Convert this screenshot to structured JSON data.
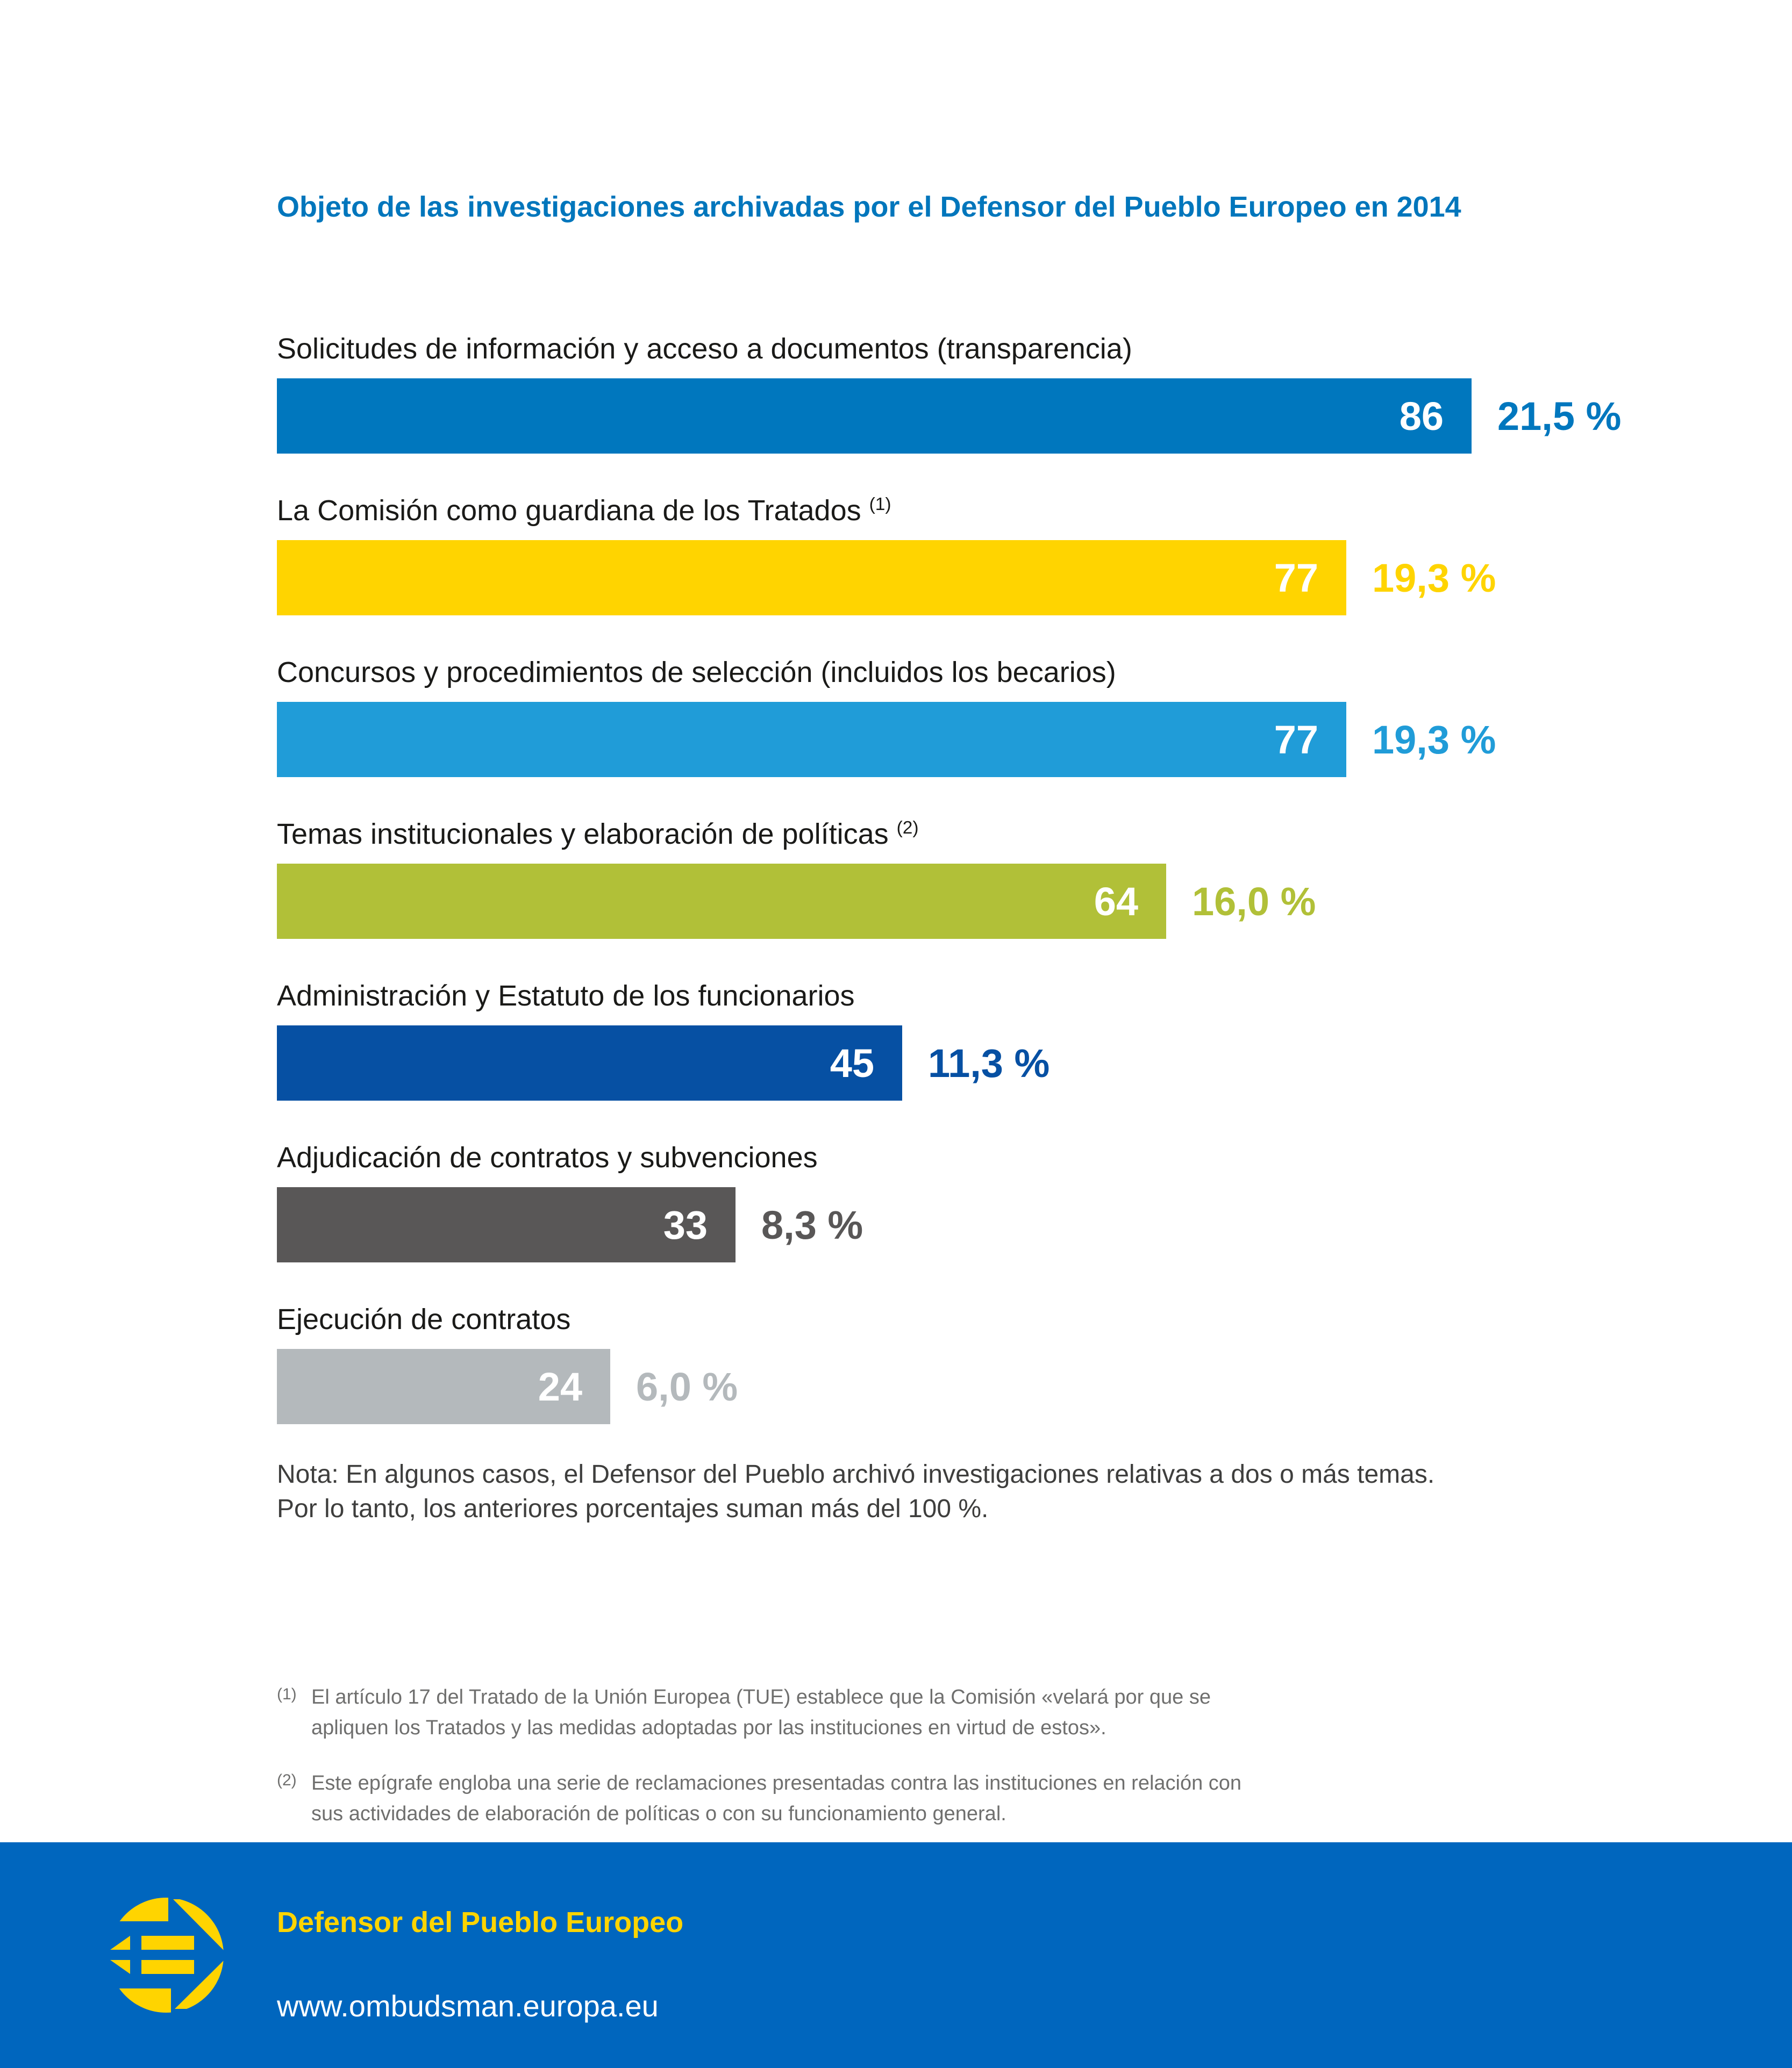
{
  "page_title": "Objeto de las investigaciones archivadas por el Defensor del Pueblo Europeo en 2014",
  "chart_data": {
    "type": "bar",
    "orientation": "horizontal",
    "title": "Objeto de las investigaciones archivadas por el Defensor del Pueblo Europeo en 2014",
    "title_color": "#0076bc",
    "max_value": 86,
    "grid": "off",
    "legend": "none",
    "categories": [
      "Solicitudes de información y acceso a documentos (transparencia)",
      "La Comisión como guardiana de los Tratados ",
      "Concursos y procedimientos de selección (incluidos los becarios)",
      "Temas institucionales y elaboración de políticas ",
      "Administración y Estatuto de los funcionarios",
      "Adjudicación de contratos y subvenciones",
      "Ejecución de contratos"
    ],
    "category_markers": [
      "",
      "(1)",
      "",
      "(2)",
      "",
      "",
      ""
    ],
    "values": [
      86,
      77,
      77,
      64,
      45,
      33,
      24
    ],
    "percent_labels": [
      "21,5 %",
      "19,3 %",
      "19,3 %",
      "16,0 %",
      "11,3 %",
      "8,3 %",
      "6,0 %"
    ],
    "bar_colors": [
      "#0077be",
      "#ffd400",
      "#209cd8",
      "#b1c038",
      "#0650a3",
      "#595757",
      "#b4b9bc"
    ],
    "percent_label_colors": [
      "#0077be",
      "#ffd400",
      "#209cd8",
      "#b1c038",
      "#0650a3",
      "#595757",
      "#b4b9bc"
    ],
    "value_label_color": "#ffffff"
  },
  "note": {
    "lines": [
      "Nota: En algunos casos, el Defensor del Pueblo archivó investigaciones relativas a dos o más temas.",
      "Por lo tanto, los anteriores porcentajes suman más del 100 %."
    ]
  },
  "footnotes": [
    {
      "marker": "(1)",
      "text": "El artículo 17 del Tratado de la Unión Europea (TUE) establece que la Comisión «velará por que se apliquen los Tratados y las medidas adoptadas por las instituciones en virtud de estos»."
    },
    {
      "marker": "(2)",
      "text": "Este epígrafe engloba una serie de reclamaciones presentadas contra las instituciones en relación con sus actividades de elaboración de políticas o con su funcionamiento general."
    }
  ],
  "footer": {
    "org_name": "Defensor del Pueblo Europeo",
    "website": "www.ombudsman.europa.eu",
    "background_color": "#0066be",
    "accent_color": "#ffd400",
    "logo": "european-ombudsman-logo"
  }
}
